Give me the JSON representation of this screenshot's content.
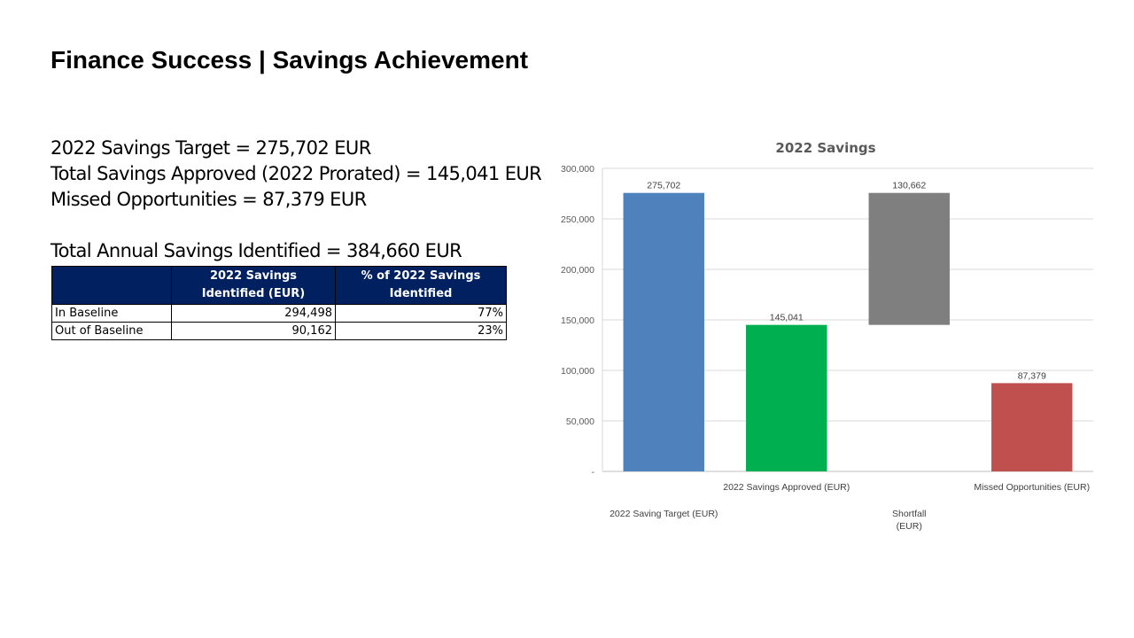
{
  "slide": {
    "title": "Finance Success | Savings Achievement"
  },
  "summary": {
    "lines": [
      "2022 Savings Target = 275,702 EUR",
      "Total Savings Approved (2022 Prorated) = 145,041 EUR",
      "Missed Opportunities = 87,379 EUR"
    ],
    "total_identified": "Total Annual Savings Identified = 384,660 EUR"
  },
  "table": {
    "headers": [
      "",
      "2022 Savings Identified (EUR)",
      "% of 2022 Savings Identified"
    ],
    "rows": [
      [
        "In Baseline",
        "294,498",
        "77%"
      ],
      [
        "Out of Baseline",
        "90,162",
        "23%"
      ]
    ],
    "header_bg": "#002060"
  },
  "chart_data": {
    "type": "bar",
    "subtype": "waterfall",
    "title": "2022 Savings",
    "xlabel": "",
    "ylabel": "",
    "ylim": [
      0,
      300000
    ],
    "yticks": [
      0,
      50000,
      100000,
      150000,
      200000,
      250000,
      300000
    ],
    "ytick_labels": [
      "-",
      "50,000",
      "100,000",
      "150,000",
      "200,000",
      "250,000",
      "300,000"
    ],
    "grid": true,
    "legend": "none",
    "categories": [
      "2022 Saving Target (EUR)",
      "2022 Savings Approved (EUR)",
      "Shortfall (EUR)",
      "Missed Opportunities (EUR)"
    ],
    "bars": [
      {
        "category": "2022 Saving Target (EUR)",
        "base": 0,
        "value": 275702,
        "label": "275,702",
        "color": "#4F81BD"
      },
      {
        "category": "2022 Savings Approved (EUR)",
        "base": 0,
        "value": 145041,
        "label": "145,041",
        "color": "#00B050"
      },
      {
        "category": "Shortfall (EUR)",
        "base": 145041,
        "value": 130662,
        "label": "130,662",
        "color": "#7F7F7F"
      },
      {
        "category": "Missed Opportunities (EUR)",
        "base": 0,
        "value": 87379,
        "label": "87,379",
        "color": "#C0504D"
      }
    ]
  }
}
